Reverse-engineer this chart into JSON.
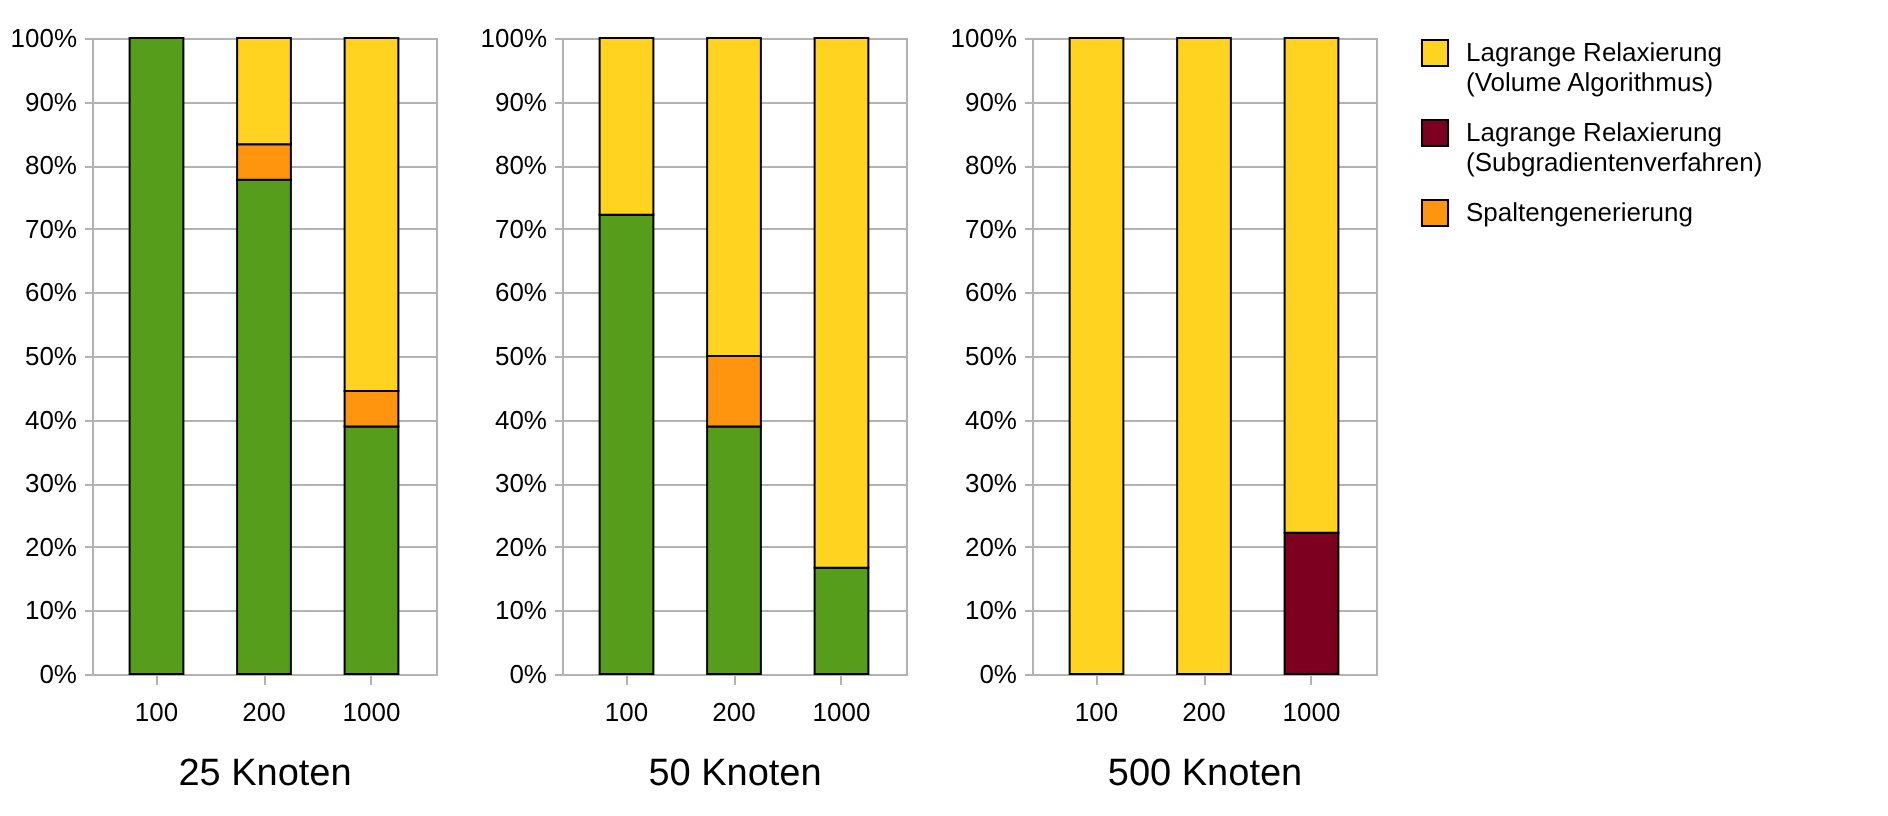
{
  "chart_data": [
    {
      "type": "bar",
      "stacked": true,
      "xlabel": "25 Knoten",
      "categories": [
        "100",
        "200",
        "1000"
      ],
      "ylim": [
        0,
        100
      ],
      "yticks": [
        {
          "value": 0,
          "label": "0%"
        },
        {
          "value": 10,
          "label": "10%"
        },
        {
          "value": 20,
          "label": "20%"
        },
        {
          "value": 30,
          "label": "30%"
        },
        {
          "value": 40,
          "label": "40%"
        },
        {
          "value": 50,
          "label": "50%"
        },
        {
          "value": 60,
          "label": "60%"
        },
        {
          "value": 70,
          "label": "70%"
        },
        {
          "value": 80,
          "label": "80%"
        },
        {
          "value": 90,
          "label": "90%"
        },
        {
          "value": 100,
          "label": "100%"
        }
      ],
      "grid": "y",
      "legend": false,
      "series": [
        {
          "color": "#579d1c",
          "values": [
            100,
            77.7,
            38.9
          ]
        },
        {
          "color": "#ff950e",
          "values": [
            null,
            5.6,
            5.6
          ]
        },
        {
          "color": "#ffd320",
          "values": [
            null,
            16.7,
            55.5
          ]
        }
      ]
    },
    {
      "type": "bar",
      "stacked": true,
      "xlabel": "50 Knoten",
      "categories": [
        "100",
        "200",
        "1000"
      ],
      "ylim": [
        0,
        100
      ],
      "yticks": [
        {
          "value": 0,
          "label": "0%"
        },
        {
          "value": 10,
          "label": "10%"
        },
        {
          "value": 20,
          "label": "20%"
        },
        {
          "value": 30,
          "label": "30%"
        },
        {
          "value": 40,
          "label": "40%"
        },
        {
          "value": 50,
          "label": "50%"
        },
        {
          "value": 60,
          "label": "60%"
        },
        {
          "value": 70,
          "label": "70%"
        },
        {
          "value": 80,
          "label": "80%"
        },
        {
          "value": 90,
          "label": "90%"
        },
        {
          "value": 100,
          "label": "100%"
        }
      ],
      "grid": "y",
      "legend": false,
      "series": [
        {
          "color": "#579d1c",
          "values": [
            72.2,
            38.9,
            16.7
          ]
        },
        {
          "color": "#ff950e",
          "values": [
            null,
            11.1,
            null
          ]
        },
        {
          "color": "#ffd320",
          "values": [
            27.8,
            50,
            83.3
          ]
        }
      ]
    },
    {
      "type": "bar",
      "stacked": true,
      "xlabel": "500 Knoten",
      "categories": [
        "100",
        "200",
        "1000"
      ],
      "ylim": [
        0,
        100
      ],
      "yticks": [
        {
          "value": 0,
          "label": "0%"
        },
        {
          "value": 10,
          "label": "10%"
        },
        {
          "value": 20,
          "label": "20%"
        },
        {
          "value": 30,
          "label": "30%"
        },
        {
          "value": 40,
          "label": "40%"
        },
        {
          "value": 50,
          "label": "50%"
        },
        {
          "value": 60,
          "label": "60%"
        },
        {
          "value": 70,
          "label": "70%"
        },
        {
          "value": 80,
          "label": "80%"
        },
        {
          "value": 90,
          "label": "90%"
        },
        {
          "value": 100,
          "label": "100%"
        }
      ],
      "grid": "y",
      "legend": "right",
      "series": [
        {
          "name": "Spaltengenerierung",
          "color": "#ff950e",
          "values": [
            null,
            null,
            null
          ]
        },
        {
          "name": "Lagrange Relaxierung (Subgradientenverfahren)",
          "color": "#7e0021",
          "values": [
            null,
            null,
            22.2
          ]
        },
        {
          "name": "Lagrange Relaxierung (Volume Algorithmus)",
          "color": "#ffd320",
          "values": [
            100,
            100,
            77.8
          ]
        }
      ]
    }
  ]
}
